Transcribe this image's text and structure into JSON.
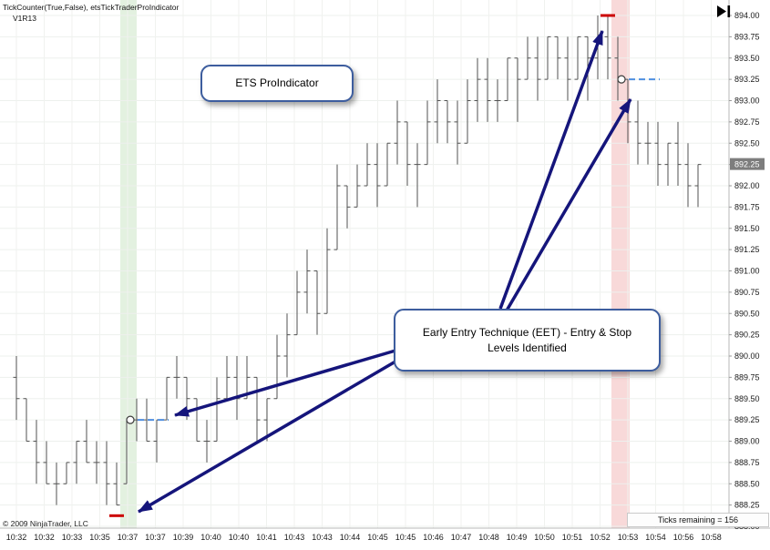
{
  "window": {
    "indicator_label": "TickCounter(True,False), etsTickTraderProIndicator",
    "version_label": "V1R13"
  },
  "footer": {
    "copyright": "© 2009 NinjaTrader, LLC",
    "ticks_remaining": "Ticks remaining = 156"
  },
  "annotations": {
    "callout_ets": {
      "text": "ETS ProIndicator"
    },
    "callout_eet": {
      "text": "Early Entry Technique (EET) - Entry & Stop Levels Identified"
    },
    "arrow_color": "#15157b",
    "arrows": [
      {
        "from": [
          434,
          385
        ],
        "to": [
          192,
          456
        ]
      },
      {
        "from": [
          434,
          397
        ],
        "to": [
          152,
          562
        ]
      },
      {
        "from": [
          549,
          339
        ],
        "to": [
          661,
          34
        ]
      },
      {
        "from": [
          556,
          341
        ],
        "to": [
          692,
          109
        ]
      }
    ]
  },
  "chart_data": {
    "type": "ohlc-bars",
    "price_axis": {
      "min": 888.0,
      "max": 894.0,
      "step": 0.25,
      "last_price": 892.25,
      "last_price_label": "892.25"
    },
    "time_ticks": [
      "10:32",
      "10:32",
      "10:33",
      "10:35",
      "10:37",
      "10:37",
      "10:39",
      "10:40",
      "10:40",
      "10:41",
      "10:43",
      "10:43",
      "10:44",
      "10:45",
      "10:45",
      "10:46",
      "10:47",
      "10:48",
      "10:49",
      "10:50",
      "10:51",
      "10:52",
      "10:53",
      "10:54",
      "10:56",
      "10:58"
    ],
    "bars": [
      [
        889.75,
        890.0,
        889.25,
        889.5
      ],
      [
        889.5,
        889.5,
        889.0,
        889.0
      ],
      [
        889.0,
        889.25,
        888.5,
        888.75
      ],
      [
        888.75,
        889.0,
        888.5,
        888.5
      ],
      [
        888.5,
        888.75,
        888.25,
        888.5
      ],
      [
        888.5,
        888.75,
        888.5,
        888.75
      ],
      [
        888.75,
        889.0,
        888.5,
        889.0
      ],
      [
        889.0,
        889.25,
        888.75,
        888.75
      ],
      [
        888.75,
        889.0,
        888.5,
        888.75
      ],
      [
        888.75,
        889.0,
        888.25,
        888.5
      ],
      [
        888.5,
        888.75,
        888.25,
        888.25
      ],
      [
        888.5,
        889.25,
        888.5,
        889.25
      ],
      [
        889.25,
        889.5,
        889.0,
        889.25
      ],
      [
        889.25,
        889.5,
        889.0,
        889.0
      ],
      [
        889.0,
        889.25,
        888.75,
        889.25
      ],
      [
        889.25,
        889.75,
        889.25,
        889.75
      ],
      [
        889.75,
        890.0,
        889.5,
        889.75
      ],
      [
        889.75,
        889.75,
        889.25,
        889.5
      ],
      [
        889.5,
        889.5,
        889.0,
        889.0
      ],
      [
        889.0,
        889.25,
        888.75,
        889.0
      ],
      [
        889.0,
        889.75,
        889.0,
        889.5
      ],
      [
        889.5,
        890.0,
        889.5,
        889.75
      ],
      [
        889.75,
        890.0,
        889.25,
        889.5
      ],
      [
        889.5,
        890.0,
        889.5,
        889.75
      ],
      [
        889.75,
        889.75,
        889.0,
        889.25
      ],
      [
        889.25,
        889.5,
        889.0,
        889.5
      ],
      [
        889.5,
        890.25,
        889.5,
        890.0
      ],
      [
        890.0,
        890.5,
        889.75,
        890.25
      ],
      [
        890.25,
        891.0,
        890.25,
        890.75
      ],
      [
        890.75,
        891.25,
        890.5,
        891.0
      ],
      [
        891.0,
        891.0,
        890.25,
        890.5
      ],
      [
        890.5,
        891.5,
        890.5,
        891.25
      ],
      [
        891.25,
        892.25,
        891.25,
        892.0
      ],
      [
        892.0,
        892.0,
        891.5,
        891.75
      ],
      [
        891.75,
        892.25,
        891.75,
        892.0
      ],
      [
        892.0,
        892.5,
        892.0,
        892.25
      ],
      [
        892.25,
        892.5,
        891.75,
        892.0
      ],
      [
        892.0,
        892.5,
        892.0,
        892.5
      ],
      [
        892.5,
        893.0,
        892.25,
        892.75
      ],
      [
        892.75,
        892.75,
        892.0,
        892.25
      ],
      [
        892.25,
        892.5,
        891.75,
        892.25
      ],
      [
        892.25,
        893.0,
        892.25,
        892.75
      ],
      [
        892.75,
        893.25,
        892.5,
        893.0
      ],
      [
        893.0,
        893.0,
        892.5,
        892.75
      ],
      [
        892.75,
        893.0,
        892.25,
        892.5
      ],
      [
        892.5,
        893.25,
        892.5,
        893.0
      ],
      [
        893.0,
        893.5,
        892.75,
        893.25
      ],
      [
        893.25,
        893.5,
        892.75,
        893.0
      ],
      [
        893.0,
        893.25,
        892.75,
        893.0
      ],
      [
        893.0,
        893.5,
        893.0,
        893.5
      ],
      [
        893.5,
        893.5,
        892.75,
        893.25
      ],
      [
        893.25,
        893.75,
        893.25,
        893.5
      ],
      [
        893.5,
        893.75,
        893.0,
        893.25
      ],
      [
        893.25,
        893.75,
        893.25,
        893.75
      ],
      [
        893.75,
        893.75,
        893.25,
        893.5
      ],
      [
        893.5,
        893.75,
        893.0,
        893.25
      ],
      [
        893.25,
        893.75,
        893.25,
        893.75
      ],
      [
        893.75,
        893.75,
        893.0,
        893.5
      ],
      [
        893.5,
        894.0,
        893.25,
        893.75
      ],
      [
        893.75,
        894.0,
        893.25,
        893.5
      ],
      [
        893.5,
        893.75,
        893.0,
        893.25
      ],
      [
        893.25,
        893.25,
        892.5,
        892.75
      ],
      [
        892.75,
        893.0,
        892.25,
        892.5
      ],
      [
        892.5,
        892.75,
        892.25,
        892.5
      ],
      [
        892.5,
        892.75,
        892.0,
        892.25
      ],
      [
        892.25,
        892.5,
        892.0,
        892.5
      ],
      [
        892.5,
        892.75,
        892.0,
        892.25
      ],
      [
        892.25,
        892.5,
        891.75,
        892.0
      ],
      [
        892.0,
        892.25,
        891.75,
        892.25
      ]
    ],
    "bands": [
      {
        "name": "long-signal-band",
        "color": "#e3f1e0",
        "bar_index": 11,
        "width": 18
      },
      {
        "name": "short-signal-band",
        "color": "#f8d9d9",
        "bar_index": 60,
        "width": 20
      }
    ],
    "entry_markers": [
      {
        "bar_index": 11,
        "price": 889.25,
        "line_color": "#4f8fe0"
      },
      {
        "bar_index": 60,
        "price": 893.25,
        "line_color": "#4f8fe0"
      }
    ],
    "stop_markers": [
      {
        "bar_index": 10,
        "price": 888.125,
        "color": "#cc0000"
      },
      {
        "bar_index": 59,
        "price": 894.0,
        "color": "#cc0000"
      }
    ]
  }
}
